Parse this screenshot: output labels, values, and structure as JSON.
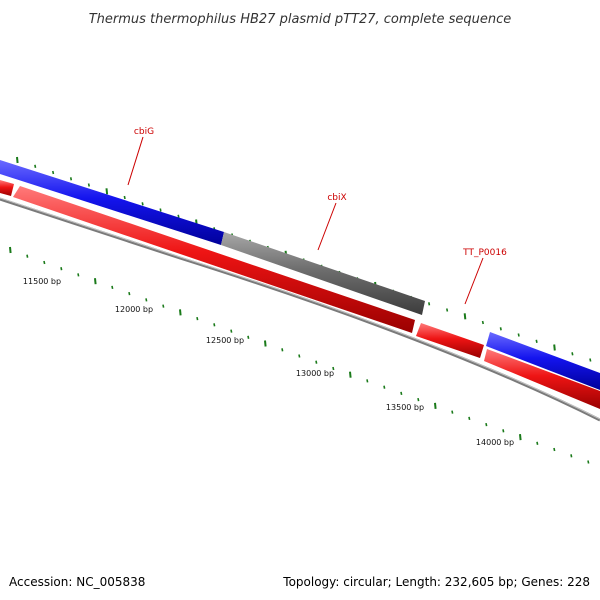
{
  "title": "Thermus thermophilus HB27 plasmid pTT27, complete sequence",
  "footer": {
    "accession": "Accession: NC_005838",
    "summary": "Topology: circular; Length: 232,605 bp; Genes: 228"
  },
  "genes": [
    {
      "name": "cbiG",
      "color": "#cc0000"
    },
    {
      "name": "cbiX",
      "color": "#cc0000"
    },
    {
      "name": "TT_P0016",
      "color": "#cc0000"
    }
  ],
  "scale_labels": [
    "11500 bp",
    "12000 bp",
    "12500 bp",
    "13000 bp",
    "13500 bp",
    "14000 bp"
  ],
  "colors": {
    "forward_strand": "#1010ee",
    "reverse_strand": "#ee1111",
    "pseudo_gene": "#707070",
    "backbone": "#808080",
    "ticks": "#1a7a1a",
    "label": "#cc0000"
  }
}
